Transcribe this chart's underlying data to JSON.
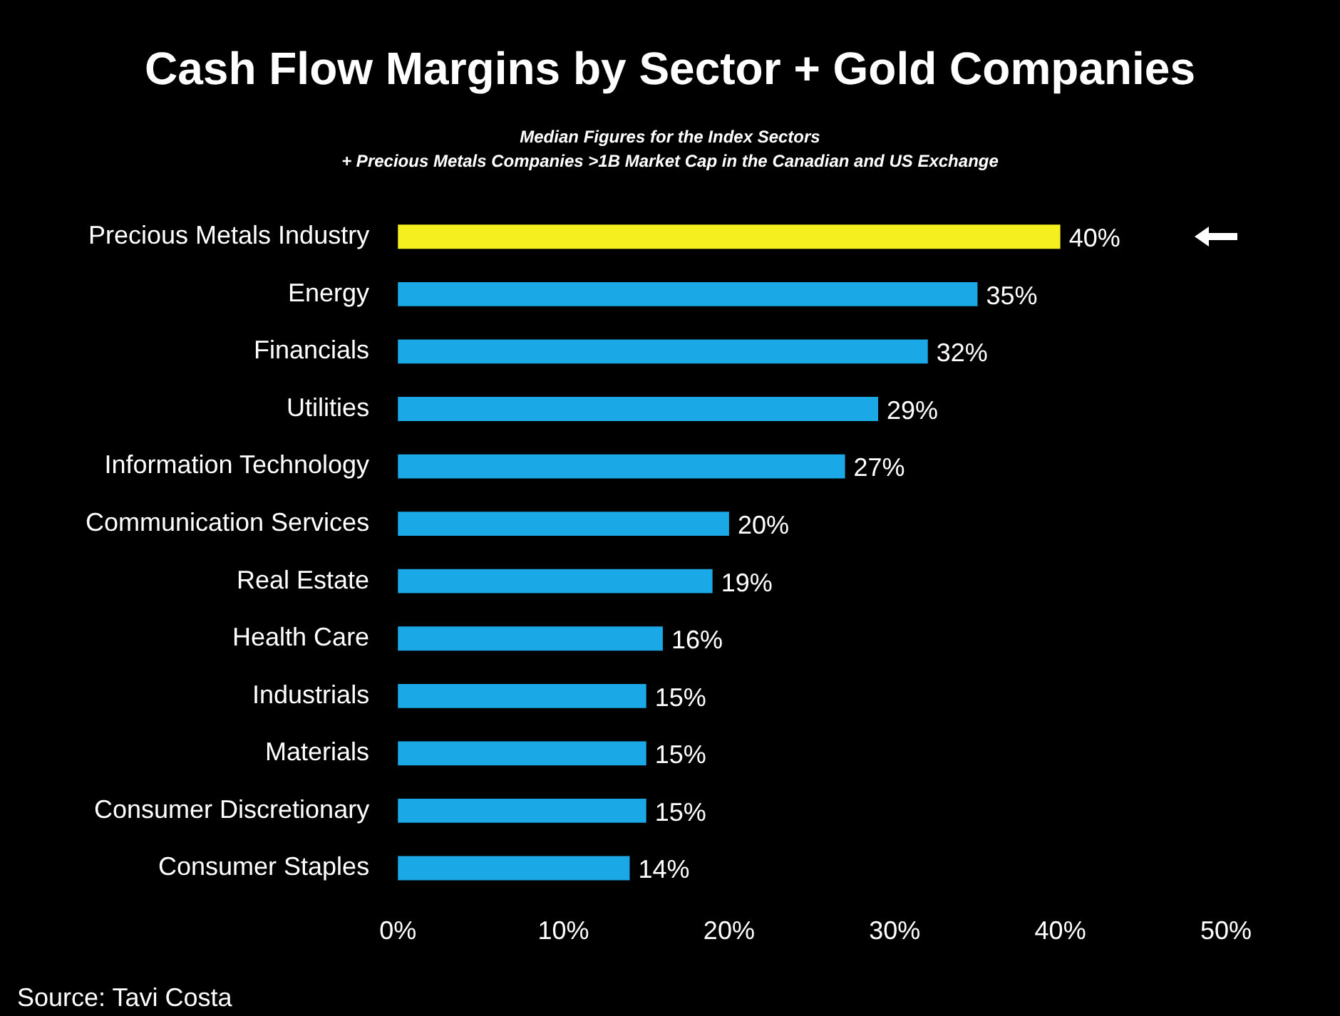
{
  "chart_data": {
    "type": "bar",
    "orientation": "horizontal",
    "title": "Cash Flow Margins by Sector + Gold Companies",
    "subtitle": "Median Figures for the Index Sectors\n+ Precious Metals Companies >1B Market Cap in the Canadian and US Exchange",
    "categories": [
      "Precious Metals Industry",
      "Energy",
      "Financials",
      "Utilities",
      "Information Technology",
      "Communication Services",
      "Real Estate",
      "Health Care",
      "Industrials",
      "Materials",
      "Consumer Discretionary",
      "Consumer Staples"
    ],
    "values": [
      40,
      35,
      32,
      29,
      27,
      20,
      19,
      16,
      15,
      15,
      15,
      14
    ],
    "value_labels": [
      "40%",
      "35%",
      "32%",
      "29%",
      "27%",
      "20%",
      "19%",
      "16%",
      "15%",
      "15%",
      "15%",
      "14%"
    ],
    "colors": [
      "#f5ef1f",
      "#1aa9e6",
      "#1aa9e6",
      "#1aa9e6",
      "#1aa9e6",
      "#1aa9e6",
      "#1aa9e6",
      "#1aa9e6",
      "#1aa9e6",
      "#1aa9e6",
      "#1aa9e6",
      "#1aa9e6"
    ],
    "xlim": [
      0,
      50
    ],
    "xticks": [
      {
        "value": 0,
        "label": "0%"
      },
      {
        "value": 10,
        "label": "10%"
      },
      {
        "value": 20,
        "label": "20%"
      },
      {
        "value": 30,
        "label": "30%"
      },
      {
        "value": 40,
        "label": "40%"
      },
      {
        "value": 50,
        "label": "50%"
      }
    ],
    "grid": false,
    "legend": false,
    "annotations": [
      "Source: Tavi Costa"
    ]
  }
}
